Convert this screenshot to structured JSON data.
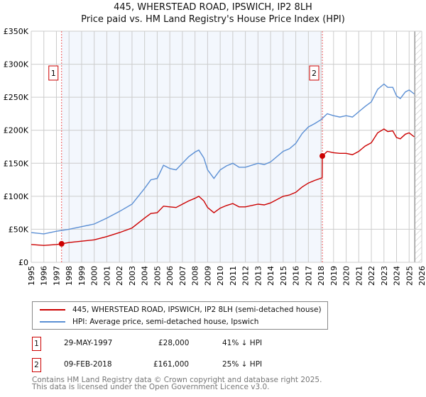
{
  "chart_data": {
    "type": "line",
    "title": "445, WHERSTEAD ROAD, IPSWICH, IP2 8LH",
    "subtitle": "Price paid vs. HM Land Registry's House Price Index (HPI)",
    "xlim": [
      1995,
      2026
    ],
    "ylim": [
      0,
      350000
    ],
    "x_ticks": [
      "1995",
      "1996",
      "1997",
      "1998",
      "1999",
      "2000",
      "2001",
      "2002",
      "2003",
      "2004",
      "2005",
      "2006",
      "2007",
      "2008",
      "2009",
      "2010",
      "2011",
      "2012",
      "2013",
      "2014",
      "2015",
      "2016",
      "2017",
      "2018",
      "2019",
      "2020",
      "2021",
      "2022",
      "2023",
      "2024",
      "2025",
      "2026"
    ],
    "y_ticks": [
      {
        "v": 0,
        "label": "£0"
      },
      {
        "v": 50000,
        "label": "£50K"
      },
      {
        "v": 100000,
        "label": "£100K"
      },
      {
        "v": 150000,
        "label": "£150K"
      },
      {
        "v": 200000,
        "label": "£200K"
      },
      {
        "v": 250000,
        "label": "£250K"
      },
      {
        "v": 300000,
        "label": "£300K"
      },
      {
        "v": 350000,
        "label": "£350K"
      }
    ],
    "grid": true,
    "shaded_range": [
      1997.41,
      2018.11
    ],
    "hatched_from": 2025.45,
    "series": [
      {
        "name": "445, WHERSTEAD ROAD, IPSWICH, IP2 8LH (semi-detached house)",
        "color": "#cc0000",
        "x": [
          1995,
          1996,
          1997,
          1997.41,
          1998,
          1999,
          2000,
          2001,
          2002,
          2003,
          2004,
          2004.5,
          2005,
          2005.5,
          2006,
          2006.5,
          2007,
          2007.5,
          2008,
          2008.3,
          2008.7,
          2009,
          2009.5,
          2010,
          2010.5,
          2011,
          2011.5,
          2012,
          2013,
          2013.5,
          2014,
          2015,
          2015.5,
          2016,
          2016.5,
          2017,
          2017.5,
          2018.1,
          2018.11,
          2018.5,
          2019,
          2019.5,
          2020,
          2020.5,
          2021,
          2021.5,
          2022,
          2022.5,
          2023,
          2023.3,
          2023.7,
          2024,
          2024.3,
          2024.7,
          2025,
          2025.4
        ],
        "y": [
          27,
          25.5,
          27,
          28,
          30,
          32,
          34,
          39,
          45,
          52,
          67,
          74,
          75,
          85,
          84,
          83,
          88,
          93,
          97,
          100,
          93,
          83,
          75,
          82,
          86,
          89,
          84,
          84,
          88,
          87,
          90,
          100,
          102,
          106,
          114,
          120,
          124,
          128,
          161,
          168,
          166,
          165,
          165,
          163,
          168,
          176,
          181,
          196,
          202,
          198,
          199,
          189,
          187,
          194,
          196,
          190
        ]
      },
      {
        "name": "HPI: Average price, semi-detached house, Ipswich",
        "color": "#5b8fd4",
        "x": [
          1995,
          1996,
          1997,
          1998,
          1999,
          2000,
          2001,
          2002,
          2003,
          2004,
          2004.5,
          2005,
          2005.5,
          2006,
          2006.5,
          2007,
          2007.5,
          2008,
          2008.3,
          2008.7,
          2009,
          2009.5,
          2010,
          2010.5,
          2011,
          2011.5,
          2012,
          2013,
          2013.5,
          2014,
          2015,
          2015.5,
          2016,
          2016.5,
          2017,
          2017.5,
          2018,
          2018.5,
          2019,
          2019.5,
          2020,
          2020.5,
          2021,
          2021.5,
          2022,
          2022.5,
          2023,
          2023.3,
          2023.7,
          2024,
          2024.3,
          2024.7,
          2025,
          2025.4
        ],
        "y": [
          45,
          43,
          47,
          50,
          54,
          58,
          67,
          77,
          88,
          112,
          125,
          127,
          147,
          142,
          140,
          150,
          160,
          167,
          170,
          158,
          140,
          127,
          140,
          146,
          150,
          144,
          144,
          150,
          148,
          152,
          168,
          172,
          180,
          195,
          205,
          210,
          216,
          225,
          222,
          220,
          222,
          220,
          228,
          236,
          243,
          262,
          270,
          265,
          265,
          252,
          248,
          258,
          261,
          255
        ]
      }
    ],
    "sales": [
      {
        "id": "1",
        "x": 1997.41,
        "y": 28
      },
      {
        "id": "2",
        "x": 2018.11,
        "y": 161
      }
    ]
  },
  "legend": {
    "property": "445, WHERSTEAD ROAD, IPSWICH, IP2 8LH (semi-detached house)",
    "hpi": "HPI: Average price, semi-detached house, Ipswich"
  },
  "transactions": [
    {
      "id": "1",
      "date": "29-MAY-1997",
      "price": "£28,000",
      "delta": "41% ↓ HPI"
    },
    {
      "id": "2",
      "date": "09-FEB-2018",
      "price": "£161,000",
      "delta": "25% ↓ HPI"
    }
  ],
  "footer": [
    "Contains HM Land Registry data © Crown copyright and database right 2025.",
    "This data is licensed under the Open Government Licence v3.0."
  ]
}
